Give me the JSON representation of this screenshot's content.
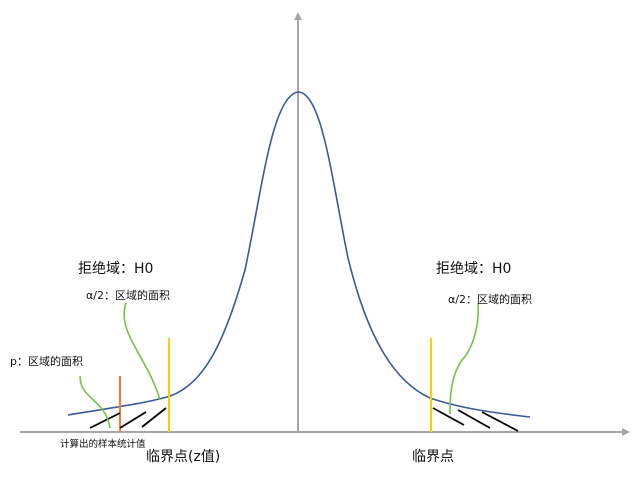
{
  "labels": {
    "reject_region_left": "拒绝域：H0",
    "half_alpha_left": "α/2：区域的面积",
    "p_area": "p：区域的面积",
    "sample_statistic": "计算出的样本统计值",
    "critical_point_left": "临界点(z值)",
    "reject_region_right": "拒绝域：H0",
    "half_alpha_right": "α/2：区域的面积",
    "critical_point_right": "临界点"
  },
  "colors": {
    "axis": "#a6a6a6",
    "curve": "#3c5a9a",
    "critical_line": "#ffcc00",
    "statistic_line": "#ff7a33",
    "pointer": "#77c246",
    "hatch": "#000000"
  }
}
